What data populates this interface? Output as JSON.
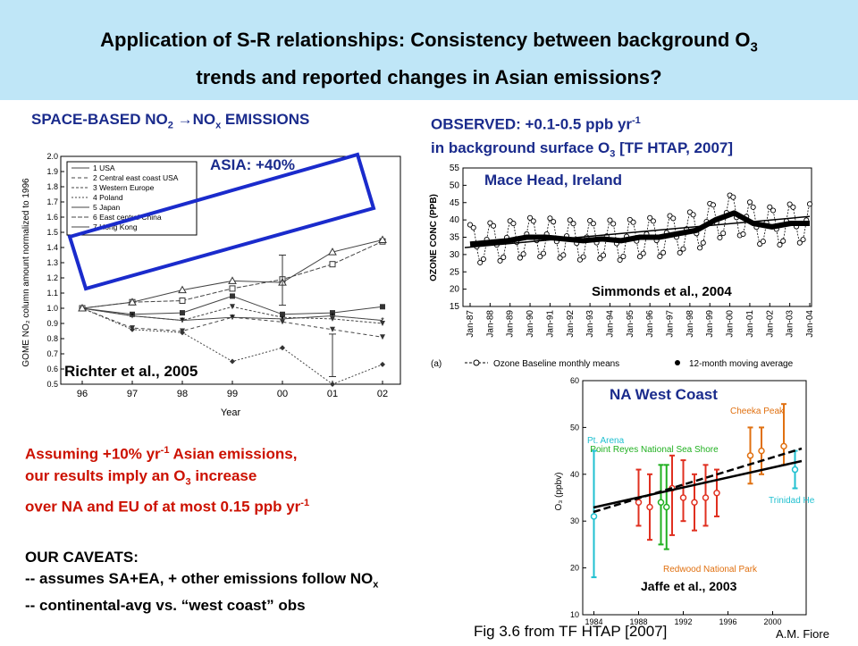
{
  "title": {
    "line1": "Application of S-R relationships: Consistency between background O",
    "line1_sub": "3",
    "line2": "trends and reported changes in Asian emissions?"
  },
  "left_heading": {
    "a": "SPACE-BASED NO",
    "sub1": "2",
    "arrow": "→",
    "b": "NO",
    "sub2": "x",
    "c": " EMISSIONS"
  },
  "right_heading": {
    "l1": "OBSERVED: +0.1-0.5 ppb yr",
    "l1_sup": "-1",
    "l2a": "in background surface O",
    "l2_sub": "3",
    "l2b": " [TF HTAP, 2007]"
  },
  "gome_panel": {
    "asia_label": "ASIA: +40%",
    "credit": "Richter et al., 2005",
    "ylabel": "GOME NO₂ column amount normalized to 1996",
    "xlabel": "Year",
    "x_ticks": [
      "96",
      "97",
      "98",
      "99",
      "00",
      "01",
      "02"
    ],
    "y_ticks": [
      "0.5",
      "0.6",
      "0.7",
      "0.8",
      "0.9",
      "1.0",
      "1.1",
      "1.2",
      "1.3",
      "1.4",
      "1.5",
      "1.6",
      "1.7",
      "1.8",
      "1.9",
      "2.0"
    ],
    "legend": [
      "1 USA",
      "2 Central east coast USA",
      "3 Western Europe",
      "4 Poland",
      "5 Japan",
      "6 East central China",
      "7 Hong Kong"
    ],
    "series": [
      {
        "name": "1 USA",
        "values": [
          1.0,
          0.96,
          0.97,
          1.08,
          0.96,
          0.97,
          1.01
        ]
      },
      {
        "name": "2 Central east coast USA",
        "values": [
          1.0,
          0.87,
          0.85,
          0.94,
          0.91,
          0.86,
          0.81
        ]
      },
      {
        "name": "3 Western Europe",
        "values": [
          1.0,
          0.95,
          0.92,
          1.01,
          0.94,
          0.93,
          0.9
        ]
      },
      {
        "name": "4 Poland",
        "values": [
          1.0,
          0.86,
          0.84,
          0.65,
          0.74,
          0.5,
          0.63
        ]
      },
      {
        "name": "5 Japan",
        "values": [
          1.0,
          0.95,
          0.92,
          0.94,
          0.93,
          0.95,
          0.92
        ]
      },
      {
        "name": "6 East central China",
        "values": [
          1.0,
          1.04,
          1.05,
          1.13,
          1.19,
          1.29,
          1.44
        ]
      },
      {
        "name": "7 Hong Kong",
        "values": [
          1.0,
          1.04,
          1.12,
          1.18,
          1.17,
          1.37,
          1.45
        ]
      }
    ]
  },
  "mace_panel": {
    "label": "Mace Head, Ireland",
    "credit": "Simmonds et al., 2004",
    "ylabel": "OZONE CONC (PPB)",
    "y_ticks": [
      "15",
      "20",
      "25",
      "30",
      "35",
      "40",
      "45",
      "50",
      "55"
    ],
    "x_ticks": [
      "Jan-87",
      "Jan-88",
      "Jan-89",
      "Jan-90",
      "Jan-91",
      "Jan-92",
      "Jan-93",
      "Jan-94",
      "Jan-95",
      "Jan-96",
      "Jan-97",
      "Jan-98",
      "Jan-99",
      "Jan-00",
      "Jan-01",
      "Jan-02",
      "Jan-03",
      "Jan-04"
    ],
    "panel_tag": "(a)",
    "legend_monthly": "Ozone Baseline monthly means",
    "legend_moving": "12-month moving average",
    "moving_average": [
      33,
      33.5,
      34,
      35,
      35,
      34.5,
      34,
      34.5,
      34,
      35,
      35,
      36,
      37,
      40,
      42,
      39,
      38,
      39,
      39
    ]
  },
  "na_panel": {
    "label": "NA West Coast",
    "credit": "Jaffe et al., 2003",
    "ylabel": "O₃ (ppbv)",
    "y_ticks": [
      "10",
      "20",
      "30",
      "40",
      "50",
      "60"
    ],
    "x_ticks": [
      "1984",
      "1988",
      "1992",
      "1996",
      "2000"
    ],
    "site_labels": {
      "cheeka": "Cheeka Peak",
      "arena": "Pt. Arena",
      "reyes": "Point Reyes National Sea Shore",
      "redwood": "Redwood National Park",
      "trinidad": "Trinidad Head"
    }
  },
  "assuming": {
    "l1a": "Assuming +10% yr",
    "l1_sup": "-1",
    "l1b": " Asian emissions,",
    "l2a": "our results imply an O",
    "l2_sub": "3",
    "l2b": " increase",
    "l3a": "over NA and EU of at most 0.15 ppb yr",
    "l3_sup": "-1"
  },
  "caveats": {
    "heading": "OUR CAVEATS:",
    "c1a": "-- assumes SA+EA, + other emissions follow NO",
    "c1_sub": "x",
    "c2": "-- continental-avg vs. “west coast” obs"
  },
  "footer": {
    "fig": "Fig 3.6 from TF HTAP [2007]",
    "author": "A.M. Fiore"
  }
}
